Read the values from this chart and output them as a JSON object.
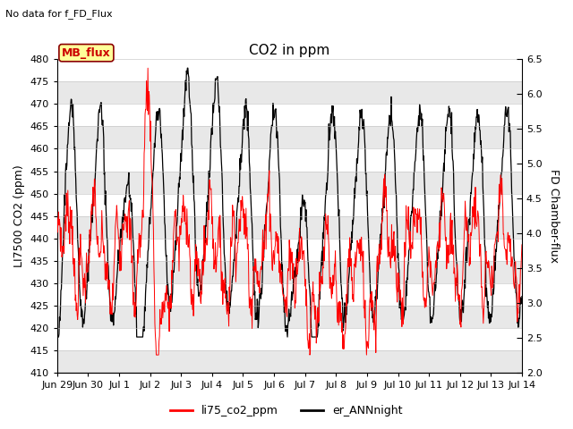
{
  "title": "CO2 in ppm",
  "subtitle": "No data for f_FD_Flux",
  "ylabel_left": "LI7500 CO2 (ppm)",
  "ylabel_right": "FD Chamber-flux",
  "ylim_left": [
    410,
    480
  ],
  "ylim_right": [
    2.0,
    6.5
  ],
  "yticks_left": [
    410,
    415,
    420,
    425,
    430,
    435,
    440,
    445,
    450,
    455,
    460,
    465,
    470,
    475,
    480
  ],
  "yticks_right": [
    2.0,
    2.5,
    3.0,
    3.5,
    4.0,
    4.5,
    5.0,
    5.5,
    6.0,
    6.5
  ],
  "xtick_labels": [
    "Jun 29",
    "Jun 30",
    "Jul 1",
    "Jul 2",
    "Jul 3",
    "Jul 4",
    "Jul 5",
    "Jul 6",
    "Jul 7",
    "Jul 8",
    "Jul 9",
    "Jul 10",
    "Jul 11",
    "Jul 12",
    "Jul 13",
    "Jul 14"
  ],
  "color_red": "#FF0000",
  "color_black": "#000000",
  "color_white": "#ffffff",
  "color_band_gray": "#e8e8e8",
  "legend_label_red": "li75_co2_ppm",
  "legend_label_black": "er_ANNnight",
  "mb_flux_color": "#CC0000",
  "mb_flux_bg": "#FFFF99",
  "mb_flux_border": "#8B0000",
  "figsize": [
    6.4,
    4.8
  ],
  "dpi": 100
}
